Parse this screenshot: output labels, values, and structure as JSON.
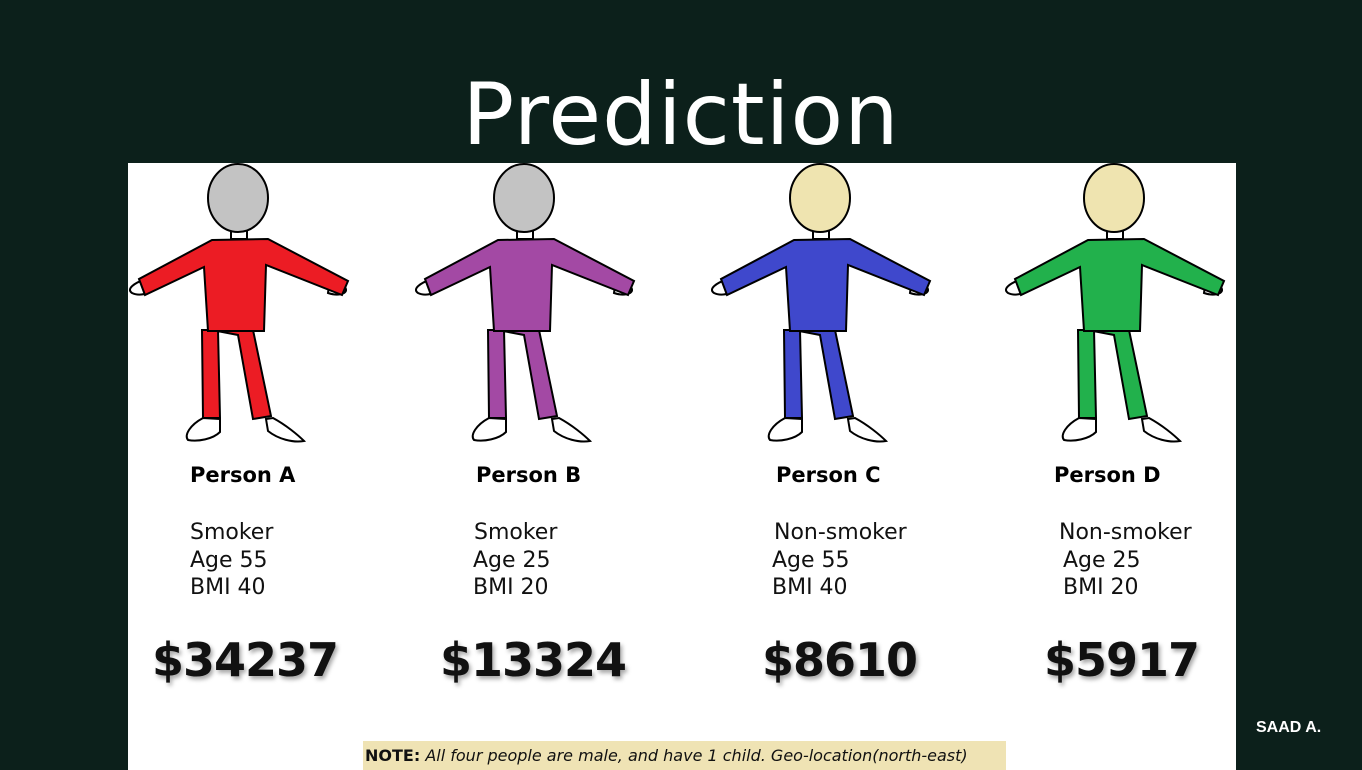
{
  "title": "Prediction",
  "author": "SAAD A.",
  "people": [
    {
      "name": "Person A",
      "smoker": "Smoker",
      "age": "Age 55",
      "bmi": "BMI 40",
      "price": "$34237",
      "shirt_color": "#ec1c24",
      "head_color": "#c3c3c3"
    },
    {
      "name": "Person B",
      "smoker": "Smoker",
      "age": "Age 25",
      "bmi": "BMI 20",
      "price": "$13324",
      "shirt_color": "#a349a4",
      "head_color": "#c3c3c3"
    },
    {
      "name": "Person C",
      "smoker": "Non-smoker",
      "age": "Age 55",
      "bmi": "BMI 40",
      "price": "$8610",
      "shirt_color": "#3f48cc",
      "head_color": "#efe4b0"
    },
    {
      "name": "Person D",
      "smoker": "Non-smoker",
      "age": "Age 25",
      "bmi": "BMI 20",
      "price": "$5917",
      "shirt_color": "#22b14c",
      "head_color": "#efe4b0"
    }
  ],
  "note": {
    "label": "NOTE:",
    "text": "All four people are male, and have 1 child. Geo-location(north-east)"
  }
}
